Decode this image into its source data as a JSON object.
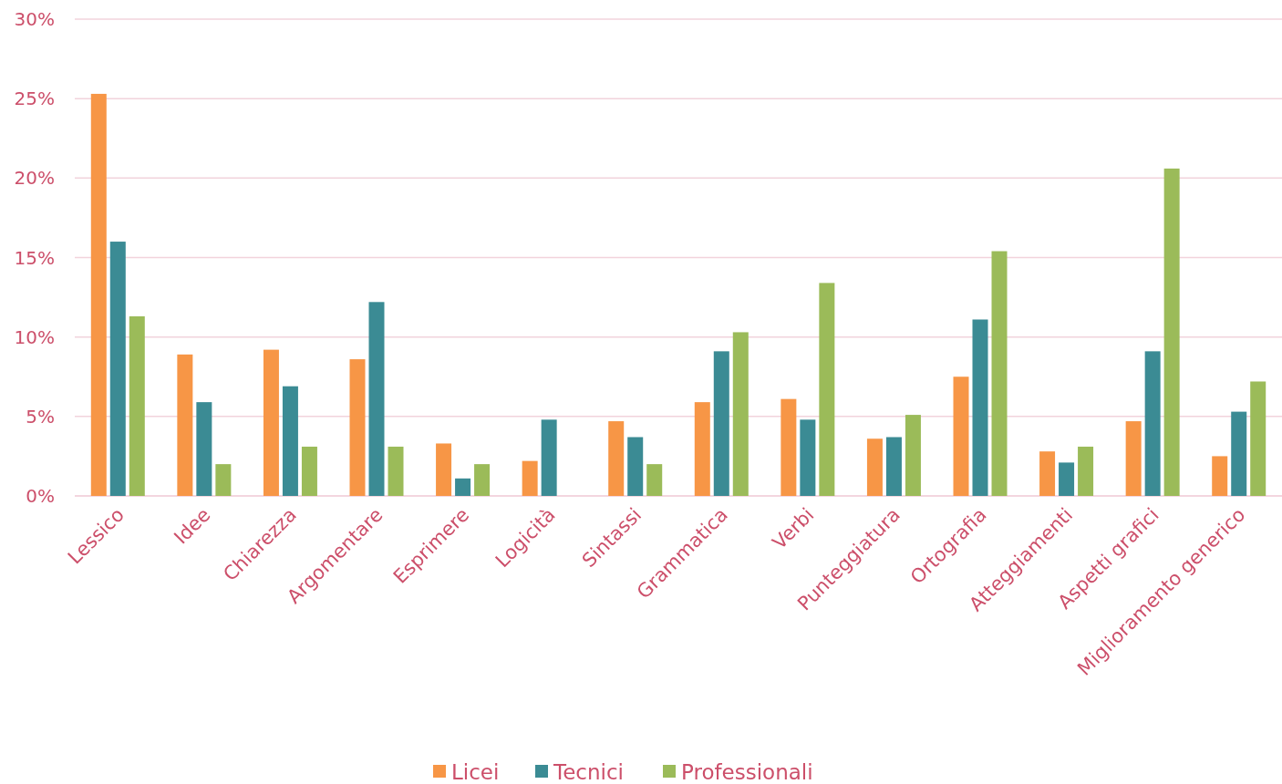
{
  "chart_data": {
    "type": "bar",
    "categories": [
      "Lessico",
      "Idee",
      "Chiarezza",
      "Argomentare",
      "Esprimere",
      "Logicità",
      "Sintassi",
      "Grammatica",
      "Verbi",
      "Punteggiatura",
      "Ortografia",
      "Atteggiamenti",
      "Aspetti grafici",
      "Miglioramento generico"
    ],
    "series": [
      {
        "name": "Licei",
        "color": "#f79646",
        "values": [
          25.3,
          8.9,
          9.2,
          8.6,
          3.3,
          2.2,
          4.7,
          5.9,
          6.1,
          3.6,
          7.5,
          2.8,
          4.7,
          2.5
        ]
      },
      {
        "name": "Tecnici",
        "color": "#3b8b94",
        "values": [
          16.0,
          5.9,
          6.9,
          12.2,
          1.1,
          4.8,
          3.7,
          9.1,
          4.8,
          3.7,
          11.1,
          2.1,
          9.1,
          5.3
        ]
      },
      {
        "name": "Professionali",
        "color": "#9bbb59",
        "values": [
          11.3,
          2.0,
          3.1,
          3.1,
          2.0,
          0,
          2.0,
          10.3,
          13.4,
          5.1,
          15.4,
          3.1,
          20.6,
          7.2
        ]
      }
    ],
    "ylim": [
      0,
      30
    ],
    "yticks": [
      {
        "value": 0,
        "label": "0%"
      },
      {
        "value": 5,
        "label": "5%"
      },
      {
        "value": 10,
        "label": "10%"
      },
      {
        "value": 15,
        "label": "15%"
      },
      {
        "value": 20,
        "label": "20%"
      },
      {
        "value": 25,
        "label": "25%"
      },
      {
        "value": 30,
        "label": "30%"
      }
    ],
    "grid": "y",
    "legend": "bottom"
  }
}
